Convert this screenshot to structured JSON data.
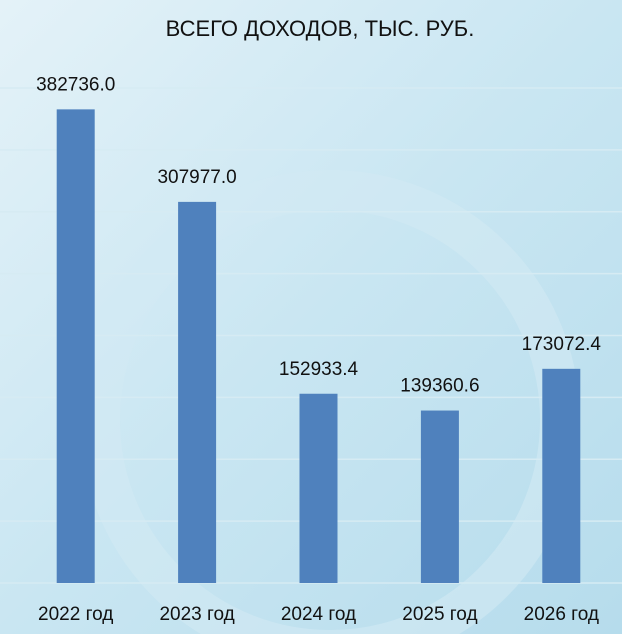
{
  "chart_data": {
    "type": "bar",
    "title": "ВСЕГО ДОХОДОВ, ТЫС. РУБ.",
    "categories": [
      "2022 год",
      "2023 год",
      "2024 год",
      "2025 год",
      "2026 год"
    ],
    "values": [
      382736.0,
      307977.0,
      152933.4,
      139360.6,
      173072.4
    ],
    "value_labels": [
      "382736.0",
      "307977.0",
      "152933.4",
      "139360.6",
      "173072.4"
    ],
    "color": "#4f81bd",
    "ylim": [
      0,
      400000
    ],
    "yticks": [
      0,
      50000,
      100000,
      150000,
      200000,
      250000,
      300000,
      350000,
      400000
    ],
    "grid": true
  }
}
